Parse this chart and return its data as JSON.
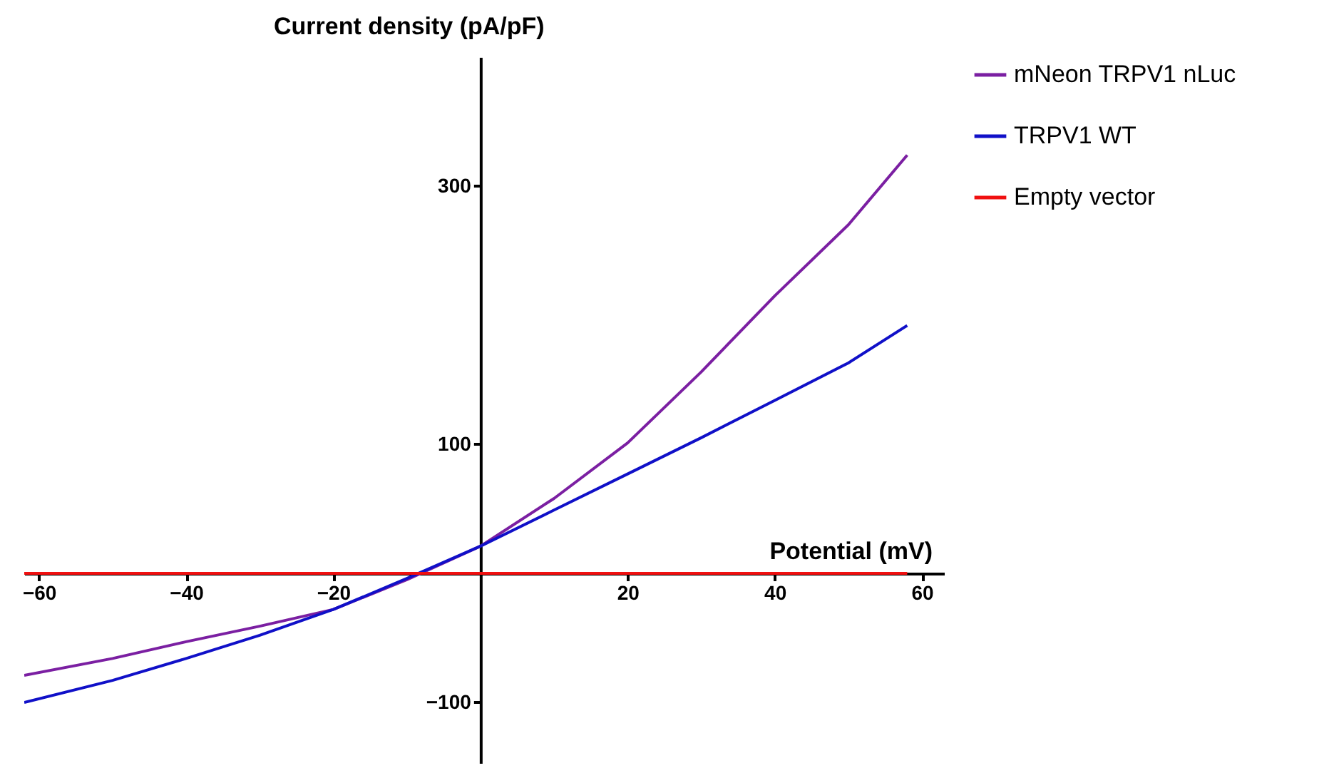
{
  "chart_data": {
    "type": "line",
    "xlabel": "Potential (mV)",
    "ylabel": "Current density (pA/pF)",
    "xlim": [
      -62,
      63
    ],
    "ylim": [
      -147,
      400
    ],
    "xticks": [
      -60,
      -40,
      -20,
      20,
      40,
      60
    ],
    "yticks": [
      -100,
      100,
      300
    ],
    "grid": false,
    "legend": "top right",
    "marker": "none",
    "line_style": "solid",
    "series": [
      {
        "name": "mNeon TRPV1 nLuc",
        "color": "#7b1fa2",
        "x": [
          -62,
          -50,
          -40,
          -30,
          -20,
          -10,
          0,
          10,
          20,
          30,
          40,
          50,
          58
        ],
        "values": [
          -79,
          -66,
          -53,
          -41,
          -28,
          -5,
          21,
          58,
          101,
          156,
          215,
          270,
          324
        ]
      },
      {
        "name": "TRPV1 WT",
        "color": "#1010c8",
        "x": [
          -62,
          -50,
          -40,
          -30,
          -20,
          -10,
          0,
          10,
          20,
          30,
          40,
          50,
          58
        ],
        "values": [
          -100,
          -83,
          -66,
          -48,
          -28,
          -4,
          21,
          49,
          77,
          105,
          134,
          163,
          192
        ]
      },
      {
        "name": "Empty vector",
        "color": "#f01010",
        "x": [
          -62,
          -30,
          0,
          30,
          58
        ],
        "values": [
          0,
          0,
          0,
          0,
          0
        ]
      }
    ]
  }
}
